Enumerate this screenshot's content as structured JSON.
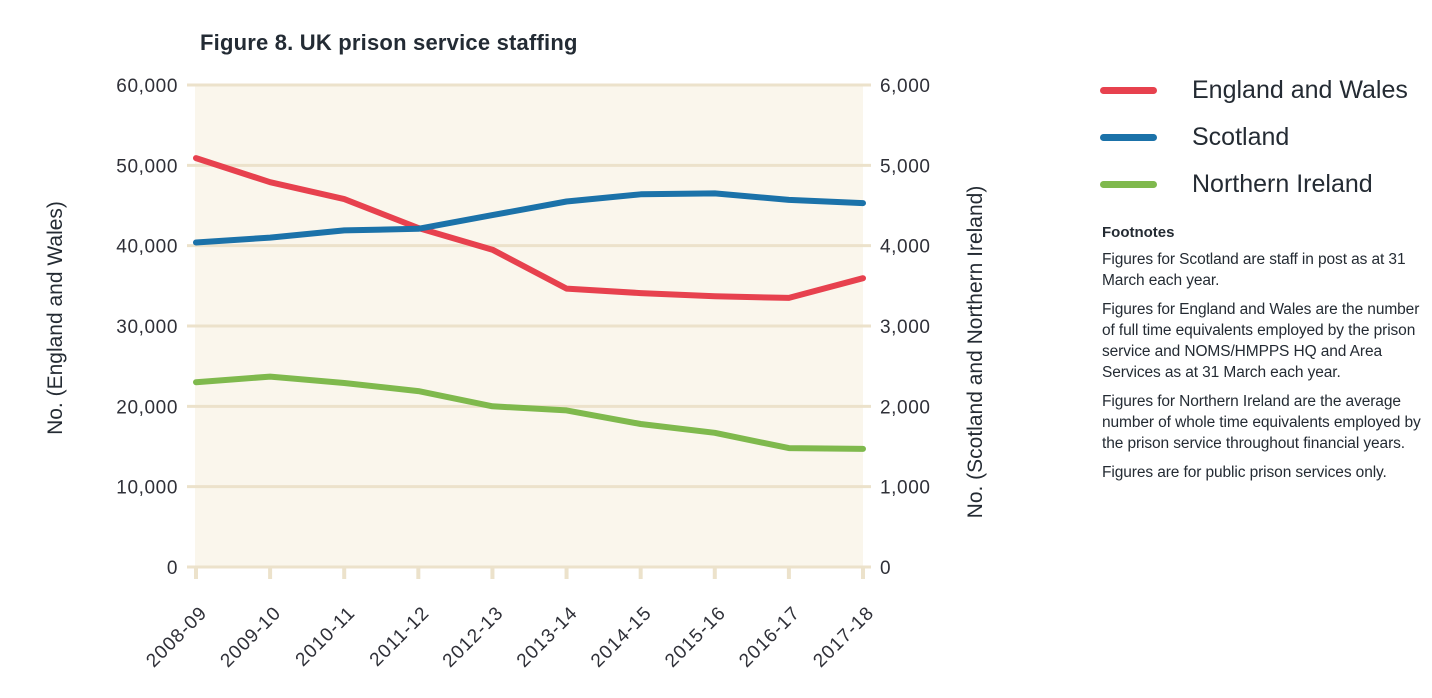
{
  "title": "Figure 8. UK prison service staffing",
  "chart_data": {
    "type": "line",
    "title": "Figure 8. UK prison service staffing",
    "categories": [
      "2008-09",
      "2009-10",
      "2010-11",
      "2011-12",
      "2012-13",
      "2013-14",
      "2014-15",
      "2015-16",
      "2016-17",
      "2017-18"
    ],
    "series": [
      {
        "name": "England and Wales",
        "axis": "left",
        "color": "#e7414e",
        "values": [
          50900,
          47900,
          45800,
          42200,
          39500,
          34650,
          34100,
          33700,
          33500,
          35950
        ]
      },
      {
        "name": "Scotland",
        "axis": "right",
        "color": "#1b72a9",
        "values": [
          4040,
          4100,
          4190,
          4210,
          4380,
          4550,
          4640,
          4650,
          4570,
          4530
        ]
      },
      {
        "name": "Northern Ireland",
        "axis": "right",
        "color": "#7fb94d",
        "values": [
          2300,
          2370,
          2290,
          2190,
          2000,
          1950,
          1780,
          1670,
          1480,
          1470
        ]
      }
    ],
    "left_axis": {
      "label": "No. (England and Wales)",
      "min": 0,
      "max": 60000,
      "ticks": [
        "60,000",
        "50,000",
        "40,000",
        "30,000",
        "20,000",
        "10,000",
        "0"
      ]
    },
    "right_axis": {
      "label": "No. (Scotland and Northern Ireland)",
      "min": 0,
      "max": 6000,
      "ticks": [
        "6,000",
        "5,000",
        "4,000",
        "3,000",
        "2,000",
        "1,000",
        "0"
      ]
    },
    "grid": true,
    "legend_position": "right",
    "plot_bg": "#faf6ec",
    "grid_color": "#ece2cb"
  },
  "legend": {
    "items": [
      {
        "label": "England and Wales",
        "color": "#e7414e"
      },
      {
        "label": "Scotland",
        "color": "#1b72a9"
      },
      {
        "label": "Northern Ireland",
        "color": "#7fb94d"
      }
    ]
  },
  "footnotes": {
    "heading": "Footnotes",
    "paragraphs": [
      "Figures for Scotland are staff in post as at 31 March each year.",
      "Figures for England and Wales are the number of full time equivalents employed by the prison service and NOMS/HMPPS HQ and Area Services as at 31 March each year.",
      "Figures for Northern Ireland are the average number of whole time equivalents employed by the prison service throughout financial years.",
      "Figures are for public prison services only."
    ]
  }
}
